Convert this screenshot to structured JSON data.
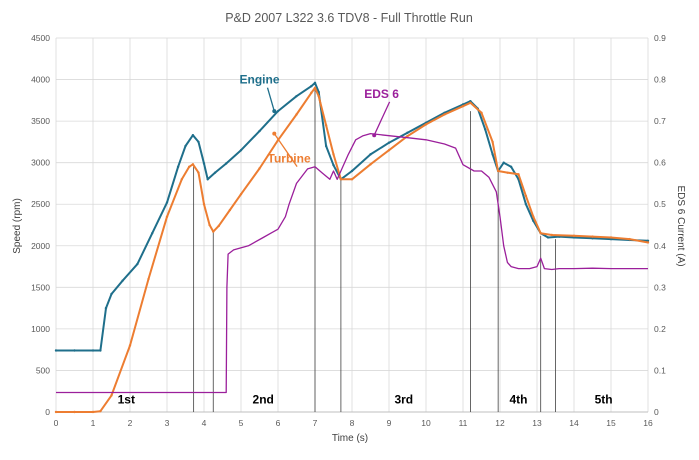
{
  "chart_data": {
    "type": "line",
    "title": "P&D  2007 L322 3.6 TDV8  -  Full Throttle Run",
    "xlabel": "Time (s)",
    "ylabel": "Speed (rpm)",
    "y2label": "EDS 6 Current (A)",
    "xlim": [
      0,
      16
    ],
    "ylim": [
      0,
      4500
    ],
    "y2lim": [
      0,
      0.9
    ],
    "x_ticks": [
      "0",
      "1",
      "2",
      "3",
      "4",
      "5",
      "6",
      "7",
      "8",
      "9",
      "10",
      "11",
      "12",
      "13",
      "14",
      "15",
      "16"
    ],
    "y_ticks": [
      "0",
      "500",
      "1000",
      "1500",
      "2000",
      "2500",
      "3000",
      "3500",
      "4000",
      "4500"
    ],
    "y2_ticks": [
      "0",
      "0.1",
      "0.2",
      "0.3",
      "0.4",
      "0.5",
      "0.6",
      "0.7",
      "0.8",
      "0.9"
    ],
    "grid": true,
    "colors": {
      "engine": "#1f6f8b",
      "turbine": "#ed7d31",
      "eds": "#9b1f9b",
      "grid": "#d9d9d9",
      "shift_line": "#404040"
    },
    "annotations": [
      {
        "label": "Engine",
        "x": 5.5,
        "y": 3950,
        "color": "#1f6f8b",
        "arrow_to": [
          5.9,
          3620
        ]
      },
      {
        "label": "Turbine",
        "x": 6.3,
        "y": 3000,
        "color": "#ed7d31",
        "arrow_to": [
          5.9,
          3350
        ]
      },
      {
        "label": "EDS 6",
        "x": 8.8,
        "y": 3780,
        "color": "#9b1f9b",
        "arrow_to": [
          8.6,
          3330
        ]
      }
    ],
    "gear_labels": [
      {
        "label": "1st",
        "x": 1.9,
        "y": 150
      },
      {
        "label": "2nd",
        "x": 5.6,
        "y": 150
      },
      {
        "label": "3rd",
        "x": 9.4,
        "y": 150
      },
      {
        "label": "4th",
        "x": 12.5,
        "y": 150
      },
      {
        "label": "5th",
        "x": 14.8,
        "y": 150
      }
    ],
    "shift_lines": [
      {
        "x": 3.72,
        "top": 2980
      },
      {
        "x": 4.25,
        "top": 2170
      },
      {
        "x": 7.0,
        "top": 3900
      },
      {
        "x": 7.7,
        "top": 2800
      },
      {
        "x": 11.2,
        "top": 3620
      },
      {
        "x": 11.95,
        "top": 2900
      },
      {
        "x": 13.1,
        "top": 2120
      },
      {
        "x": 13.5,
        "top": 2080
      }
    ],
    "series": [
      {
        "name": "Engine",
        "axis": "left",
        "x": [
          0,
          0.5,
          1.0,
          1.2,
          1.35,
          1.5,
          1.8,
          2.2,
          2.6,
          3.0,
          3.3,
          3.5,
          3.7,
          3.85,
          4.0,
          4.1,
          4.3,
          4.6,
          5.0,
          5.5,
          6.0,
          6.5,
          6.9,
          7.0,
          7.1,
          7.3,
          7.5,
          7.7,
          8.0,
          8.5,
          9.0,
          9.5,
          10.0,
          10.5,
          11.0,
          11.2,
          11.4,
          11.6,
          11.8,
          11.95,
          12.1,
          12.3,
          12.5,
          12.7,
          12.9,
          13.1,
          13.3,
          13.6,
          14.0,
          14.5,
          15.0,
          15.5,
          16.0
        ],
        "y": [
          740,
          740,
          740,
          740,
          1250,
          1420,
          1580,
          1780,
          2150,
          2520,
          2950,
          3200,
          3330,
          3250,
          2990,
          2800,
          2880,
          2990,
          3150,
          3380,
          3620,
          3800,
          3920,
          3960,
          3850,
          3200,
          2970,
          2800,
          2900,
          3100,
          3240,
          3360,
          3480,
          3600,
          3700,
          3740,
          3650,
          3400,
          3100,
          2900,
          3000,
          2950,
          2800,
          2500,
          2300,
          2150,
          2100,
          2110,
          2100,
          2090,
          2080,
          2070,
          2060
        ]
      },
      {
        "name": "Turbine",
        "axis": "left",
        "x": [
          0,
          0.5,
          1.0,
          1.2,
          1.5,
          2.0,
          2.5,
          3.0,
          3.4,
          3.6,
          3.7,
          3.85,
          4.0,
          4.15,
          4.25,
          4.4,
          4.7,
          5.0,
          5.5,
          6.0,
          6.5,
          6.9,
          7.0,
          7.1,
          7.3,
          7.5,
          7.7,
          8.0,
          8.5,
          9.0,
          9.5,
          10.0,
          10.5,
          11.0,
          11.2,
          11.5,
          11.8,
          11.95,
          12.2,
          12.5,
          12.7,
          12.9,
          13.1,
          13.4,
          14.0,
          14.5,
          15.0,
          15.5,
          16.0
        ],
        "y": [
          0,
          0,
          0,
          10,
          200,
          800,
          1600,
          2350,
          2800,
          2950,
          2980,
          2880,
          2500,
          2250,
          2170,
          2240,
          2430,
          2620,
          2930,
          3270,
          3580,
          3840,
          3900,
          3800,
          3450,
          3100,
          2800,
          2800,
          2980,
          3150,
          3320,
          3460,
          3580,
          3680,
          3720,
          3600,
          3250,
          2900,
          2880,
          2860,
          2600,
          2350,
          2150,
          2130,
          2120,
          2110,
          2100,
          2080,
          2040
        ]
      },
      {
        "name": "EDS 6",
        "axis": "right",
        "x": [
          0,
          1.0,
          2.0,
          3.0,
          3.7,
          4.5,
          4.6,
          4.62,
          4.65,
          4.8,
          5.2,
          5.6,
          5.8,
          6.0,
          6.2,
          6.3,
          6.5,
          6.8,
          7.0,
          7.2,
          7.4,
          7.5,
          7.6,
          7.7,
          7.9,
          8.1,
          8.3,
          8.5,
          9.0,
          9.5,
          10.0,
          10.5,
          10.8,
          11.0,
          11.3,
          11.5,
          11.7,
          11.9,
          12.0,
          12.1,
          12.2,
          12.3,
          12.5,
          12.8,
          13.0,
          13.1,
          13.2,
          13.4,
          13.6,
          14.0,
          14.5,
          15.0,
          15.5,
          16.0
        ],
        "y": [
          0.047,
          0.047,
          0.047,
          0.047,
          0.047,
          0.047,
          0.047,
          0.3,
          0.38,
          0.39,
          0.4,
          0.42,
          0.43,
          0.44,
          0.47,
          0.5,
          0.55,
          0.585,
          0.59,
          0.575,
          0.56,
          0.58,
          0.56,
          0.58,
          0.62,
          0.655,
          0.665,
          0.67,
          0.665,
          0.66,
          0.655,
          0.645,
          0.635,
          0.595,
          0.58,
          0.58,
          0.565,
          0.53,
          0.47,
          0.4,
          0.36,
          0.35,
          0.345,
          0.345,
          0.35,
          0.37,
          0.345,
          0.343,
          0.345,
          0.345,
          0.346,
          0.345,
          0.345,
          0.345
        ]
      }
    ]
  }
}
